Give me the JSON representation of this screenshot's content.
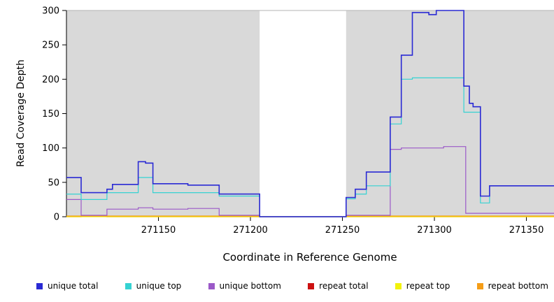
{
  "chart_data": {
    "type": "line",
    "title": "",
    "xlabel": "Coordinate in Reference Genome",
    "ylabel": "Read Coverage Depth",
    "xlim": [
      271100,
      271365
    ],
    "ylim": [
      0,
      300
    ],
    "xticks": [
      271150,
      271200,
      271250,
      271300,
      271350
    ],
    "yticks": [
      0,
      50,
      100,
      150,
      200,
      250,
      300
    ],
    "panel_bg": "#d9d9d9",
    "gap_x": [
      271205,
      271252
    ],
    "legend_position": "bottom",
    "grid": false,
    "draw_order": [
      3,
      4,
      5,
      2,
      1,
      0
    ],
    "series": [
      {
        "name": "unique total",
        "color": "#2a2ad4",
        "width": 1.6,
        "steps": [
          [
            271100,
            57
          ],
          [
            271108,
            35
          ],
          [
            271122,
            40
          ],
          [
            271125,
            47
          ],
          [
            271139,
            80
          ],
          [
            271143,
            78
          ],
          [
            271147,
            48
          ],
          [
            271166,
            46
          ],
          [
            271183,
            33
          ],
          [
            271205,
            0
          ],
          [
            271252,
            28
          ],
          [
            271257,
            40
          ],
          [
            271263,
            65
          ],
          [
            271276,
            145
          ],
          [
            271282,
            235
          ],
          [
            271288,
            297
          ],
          [
            271297,
            294
          ],
          [
            271301,
            300
          ],
          [
            271316,
            190
          ],
          [
            271319,
            165
          ],
          [
            271321,
            160
          ],
          [
            271325,
            30
          ],
          [
            271330,
            45
          ],
          [
            271365,
            45
          ]
        ]
      },
      {
        "name": "unique top",
        "color": "#35d2d2",
        "width": 1.2,
        "steps": [
          [
            271100,
            33
          ],
          [
            271108,
            25
          ],
          [
            271122,
            35
          ],
          [
            271139,
            57
          ],
          [
            271147,
            35
          ],
          [
            271183,
            30
          ],
          [
            271205,
            0
          ],
          [
            271252,
            26
          ],
          [
            271257,
            33
          ],
          [
            271263,
            45
          ],
          [
            271276,
            135
          ],
          [
            271282,
            200
          ],
          [
            271288,
            202
          ],
          [
            271316,
            152
          ],
          [
            271325,
            20
          ],
          [
            271330,
            45
          ],
          [
            271365,
            45
          ]
        ]
      },
      {
        "name": "unique bottom",
        "color": "#9b59c8",
        "width": 1.2,
        "steps": [
          [
            271100,
            25
          ],
          [
            271108,
            2
          ],
          [
            271122,
            11
          ],
          [
            271139,
            13
          ],
          [
            271147,
            11
          ],
          [
            271166,
            12
          ],
          [
            271183,
            2
          ],
          [
            271205,
            0
          ],
          [
            271252,
            2
          ],
          [
            271276,
            98
          ],
          [
            271282,
            100
          ],
          [
            271305,
            102
          ],
          [
            271317,
            5
          ],
          [
            271365,
            5
          ]
        ]
      },
      {
        "name": "repeat total",
        "color": "#cc1111",
        "width": 1.2,
        "steps": [
          [
            271100,
            0
          ],
          [
            271108,
            1
          ],
          [
            271122,
            0
          ],
          [
            271365,
            0
          ]
        ]
      },
      {
        "name": "repeat top",
        "color": "#f2f20c",
        "width": 1.2,
        "steps": [
          [
            271100,
            0
          ],
          [
            271365,
            0
          ]
        ]
      },
      {
        "name": "repeat bottom",
        "color": "#f59d17",
        "width": 1.2,
        "steps": [
          [
            271100,
            1
          ],
          [
            271205,
            0
          ],
          [
            271252,
            1
          ],
          [
            271365,
            1
          ]
        ]
      }
    ]
  }
}
